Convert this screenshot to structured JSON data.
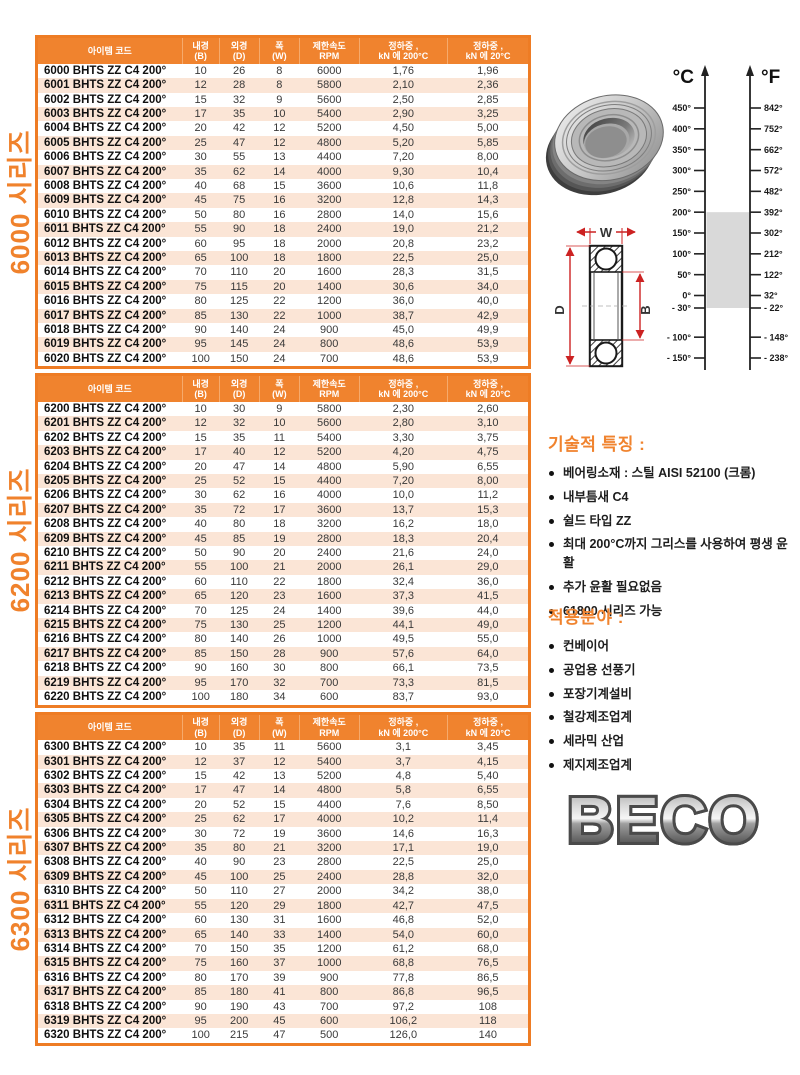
{
  "table_headers": [
    "아이템 코드",
    "내경\n(B)",
    "외경\n(D)",
    "폭\n(W)",
    "제한속도\nRPM",
    "정하중 ,\nkN 에 200°C",
    "정하중 ,\nkN 에 20°C"
  ],
  "series_tables": [
    {
      "side_label": "6000 시리즈",
      "rows": [
        [
          "6000 BHTS ZZ C4 200°",
          "10",
          "26",
          "8",
          "6000",
          "1,76",
          "1,96"
        ],
        [
          "6001 BHTS ZZ C4 200°",
          "12",
          "28",
          "8",
          "5800",
          "2,10",
          "2,36"
        ],
        [
          "6002 BHTS ZZ C4 200°",
          "15",
          "32",
          "9",
          "5600",
          "2,50",
          "2,85"
        ],
        [
          "6003 BHTS ZZ C4 200°",
          "17",
          "35",
          "10",
          "5400",
          "2,90",
          "3,25"
        ],
        [
          "6004 BHTS ZZ C4 200°",
          "20",
          "42",
          "12",
          "5200",
          "4,50",
          "5,00"
        ],
        [
          "6005 BHTS ZZ C4 200°",
          "25",
          "47",
          "12",
          "4800",
          "5,20",
          "5,85"
        ],
        [
          "6006 BHTS ZZ C4 200°",
          "30",
          "55",
          "13",
          "4400",
          "7,20",
          "8,00"
        ],
        [
          "6007 BHTS ZZ C4 200°",
          "35",
          "62",
          "14",
          "4000",
          "9,30",
          "10,4"
        ],
        [
          "6008 BHTS ZZ C4 200°",
          "40",
          "68",
          "15",
          "3600",
          "10,6",
          "11,8"
        ],
        [
          "6009 BHTS ZZ C4 200°",
          "45",
          "75",
          "16",
          "3200",
          "12,8",
          "14,3"
        ],
        [
          "6010 BHTS ZZ C4 200°",
          "50",
          "80",
          "16",
          "2800",
          "14,0",
          "15,6"
        ],
        [
          "6011 BHTS ZZ C4 200°",
          "55",
          "90",
          "18",
          "2400",
          "19,0",
          "21,2"
        ],
        [
          "6012 BHTS ZZ C4 200°",
          "60",
          "95",
          "18",
          "2000",
          "20,8",
          "23,2"
        ],
        [
          "6013 BHTS ZZ C4 200°",
          "65",
          "100",
          "18",
          "1800",
          "22,5",
          "25,0"
        ],
        [
          "6014 BHTS ZZ C4 200°",
          "70",
          "110",
          "20",
          "1600",
          "28,3",
          "31,5"
        ],
        [
          "6015 BHTS ZZ C4 200°",
          "75",
          "115",
          "20",
          "1400",
          "30,6",
          "34,0"
        ],
        [
          "6016 BHTS ZZ C4 200°",
          "80",
          "125",
          "22",
          "1200",
          "36,0",
          "40,0"
        ],
        [
          "6017 BHTS ZZ C4 200°",
          "85",
          "130",
          "22",
          "1000",
          "38,7",
          "42,9"
        ],
        [
          "6018 BHTS ZZ C4 200°",
          "90",
          "140",
          "24",
          "900",
          "45,0",
          "49,9"
        ],
        [
          "6019 BHTS ZZ C4 200°",
          "95",
          "145",
          "24",
          "800",
          "48,6",
          "53,9"
        ],
        [
          "6020 BHTS ZZ C4 200°",
          "100",
          "150",
          "24",
          "700",
          "48,6",
          "53,9"
        ]
      ]
    },
    {
      "side_label": "6200 시리즈",
      "rows": [
        [
          "6200 BHTS ZZ C4 200°",
          "10",
          "30",
          "9",
          "5800",
          "2,30",
          "2,60"
        ],
        [
          "6201 BHTS ZZ C4 200°",
          "12",
          "32",
          "10",
          "5600",
          "2,80",
          "3,10"
        ],
        [
          "6202 BHTS ZZ C4 200°",
          "15",
          "35",
          "11",
          "5400",
          "3,30",
          "3,75"
        ],
        [
          "6203 BHTS ZZ C4 200°",
          "17",
          "40",
          "12",
          "5200",
          "4,20",
          "4,75"
        ],
        [
          "6204 BHTS ZZ C4 200°",
          "20",
          "47",
          "14",
          "4800",
          "5,90",
          "6,55"
        ],
        [
          "6205 BHTS ZZ C4 200°",
          "25",
          "52",
          "15",
          "4400",
          "7,20",
          "8,00"
        ],
        [
          "6206 BHTS ZZ C4 200°",
          "30",
          "62",
          "16",
          "4000",
          "10,0",
          "11,2"
        ],
        [
          "6207 BHTS ZZ C4 200°",
          "35",
          "72",
          "17",
          "3600",
          "13,7",
          "15,3"
        ],
        [
          "6208 BHTS ZZ C4 200°",
          "40",
          "80",
          "18",
          "3200",
          "16,2",
          "18,0"
        ],
        [
          "6209 BHTS ZZ C4 200°",
          "45",
          "85",
          "19",
          "2800",
          "18,3",
          "20,4"
        ],
        [
          "6210 BHTS ZZ C4 200°",
          "50",
          "90",
          "20",
          "2400",
          "21,6",
          "24,0"
        ],
        [
          "6211 BHTS ZZ C4 200°",
          "55",
          "100",
          "21",
          "2000",
          "26,1",
          "29,0"
        ],
        [
          "6212 BHTS ZZ C4 200°",
          "60",
          "110",
          "22",
          "1800",
          "32,4",
          "36,0"
        ],
        [
          "6213 BHTS ZZ C4 200°",
          "65",
          "120",
          "23",
          "1600",
          "37,3",
          "41,5"
        ],
        [
          "6214 BHTS ZZ C4 200°",
          "70",
          "125",
          "24",
          "1400",
          "39,6",
          "44,0"
        ],
        [
          "6215 BHTS ZZ C4 200°",
          "75",
          "130",
          "25",
          "1200",
          "44,1",
          "49,0"
        ],
        [
          "6216 BHTS ZZ C4 200°",
          "80",
          "140",
          "26",
          "1000",
          "49,5",
          "55,0"
        ],
        [
          "6217 BHTS ZZ C4 200°",
          "85",
          "150",
          "28",
          "900",
          "57,6",
          "64,0"
        ],
        [
          "6218 BHTS ZZ C4 200°",
          "90",
          "160",
          "30",
          "800",
          "66,1",
          "73,5"
        ],
        [
          "6219 BHTS ZZ C4 200°",
          "95",
          "170",
          "32",
          "700",
          "73,3",
          "81,5"
        ],
        [
          "6220 BHTS ZZ C4 200°",
          "100",
          "180",
          "34",
          "600",
          "83,7",
          "93,0"
        ]
      ]
    },
    {
      "side_label": "6300 시리즈",
      "rows": [
        [
          "6300 BHTS ZZ C4 200°",
          "10",
          "35",
          "11",
          "5600",
          "3,1",
          "3,45"
        ],
        [
          "6301 BHTS ZZ C4 200°",
          "12",
          "37",
          "12",
          "5400",
          "3,7",
          "4,15"
        ],
        [
          "6302 BHTS ZZ C4 200°",
          "15",
          "42",
          "13",
          "5200",
          "4,8",
          "5,40"
        ],
        [
          "6303 BHTS ZZ C4 200°",
          "17",
          "47",
          "14",
          "4800",
          "5,8",
          "6,55"
        ],
        [
          "6304 BHTS ZZ C4 200°",
          "20",
          "52",
          "15",
          "4400",
          "7,6",
          "8,50"
        ],
        [
          "6305 BHTS ZZ C4 200°",
          "25",
          "62",
          "17",
          "4000",
          "10,2",
          "11,4"
        ],
        [
          "6306 BHTS ZZ C4 200°",
          "30",
          "72",
          "19",
          "3600",
          "14,6",
          "16,3"
        ],
        [
          "6307 BHTS ZZ C4 200°",
          "35",
          "80",
          "21",
          "3200",
          "17,1",
          "19,0"
        ],
        [
          "6308 BHTS ZZ C4 200°",
          "40",
          "90",
          "23",
          "2800",
          "22,5",
          "25,0"
        ],
        [
          "6309 BHTS ZZ C4 200°",
          "45",
          "100",
          "25",
          "2400",
          "28,8",
          "32,0"
        ],
        [
          "6310 BHTS ZZ C4 200°",
          "50",
          "110",
          "27",
          "2000",
          "34,2",
          "38,0"
        ],
        [
          "6311 BHTS ZZ C4 200°",
          "55",
          "120",
          "29",
          "1800",
          "42,7",
          "47,5"
        ],
        [
          "6312 BHTS ZZ C4 200°",
          "60",
          "130",
          "31",
          "1600",
          "46,8",
          "52,0"
        ],
        [
          "6313 BHTS ZZ C4 200°",
          "65",
          "140",
          "33",
          "1400",
          "54,0",
          "60,0"
        ],
        [
          "6314 BHTS ZZ C4 200°",
          "70",
          "150",
          "35",
          "1200",
          "61,2",
          "68,0"
        ],
        [
          "6315 BHTS ZZ C4 200°",
          "75",
          "160",
          "37",
          "1000",
          "68,8",
          "76,5"
        ],
        [
          "6316 BHTS ZZ C4 200°",
          "80",
          "170",
          "39",
          "900",
          "77,8",
          "86,5"
        ],
        [
          "6317 BHTS ZZ C4 200°",
          "85",
          "180",
          "41",
          "800",
          "86,8",
          "96,5"
        ],
        [
          "6318 BHTS ZZ C4 200°",
          "90",
          "190",
          "43",
          "700",
          "97,2",
          "108"
        ],
        [
          "6319 BHTS ZZ C4 200°",
          "95",
          "200",
          "45",
          "600",
          "106,2",
          "118"
        ],
        [
          "6320 BHTS ZZ C4 200°",
          "100",
          "215",
          "47",
          "500",
          "126,0",
          "140"
        ]
      ]
    }
  ],
  "temp_chart": {
    "c_axis_label": "°C",
    "f_axis_label": "°F",
    "band_range_c": [
      200,
      -30
    ],
    "ticks": [
      {
        "c": 450,
        "c_label": "450°",
        "f_label": "842°"
      },
      {
        "c": 400,
        "c_label": "400°",
        "f_label": "752°"
      },
      {
        "c": 350,
        "c_label": "350°",
        "f_label": "662°"
      },
      {
        "c": 300,
        "c_label": "300°",
        "f_label": "572°"
      },
      {
        "c": 250,
        "c_label": "250°",
        "f_label": "482°"
      },
      {
        "c": 200,
        "c_label": "200°",
        "f_label": "392°"
      },
      {
        "c": 150,
        "c_label": "150°",
        "f_label": "302°"
      },
      {
        "c": 100,
        "c_label": "100°",
        "f_label": "212°"
      },
      {
        "c": 50,
        "c_label": "50°",
        "f_label": "122°"
      },
      {
        "c": 0,
        "c_label": "0°",
        "f_label": "32°"
      },
      {
        "c": -30,
        "c_label": "- 30°",
        "f_label": "- 22°"
      },
      {
        "c": -100,
        "c_label": "- 100°",
        "f_label": "- 148°"
      },
      {
        "c": -150,
        "c_label": "- 150°",
        "f_label": "- 238°"
      }
    ]
  },
  "diagram": {
    "w_label": "W",
    "d_label": "D",
    "b_label": "B"
  },
  "tech_features": {
    "title": "기술적 특징 :",
    "items": [
      "베어링소재 : 스틸 AISI 52100 (크롬)",
      "내부틈새 C4",
      "쉴드 타입 ZZ",
      "최대 200°C까지 그리스를 사용하여 평생 윤활",
      "추가 윤활 필요없음",
      "61800 시리즈 가능"
    ]
  },
  "applications": {
    "title": "적용분야 :",
    "items": [
      "컨베이어",
      "공업용 선풍기",
      "포장기계설비",
      "철강제조업계",
      "세라믹 산업",
      "제지제조업계"
    ]
  },
  "logo": {
    "text": "BECO"
  },
  "colors": {
    "orange": "#f0832e",
    "table_border": "#ee7c24",
    "row_stripe": "#fbe5d6",
    "band_gray": "#d9d9d9",
    "dimension_red": "#cc2222"
  }
}
